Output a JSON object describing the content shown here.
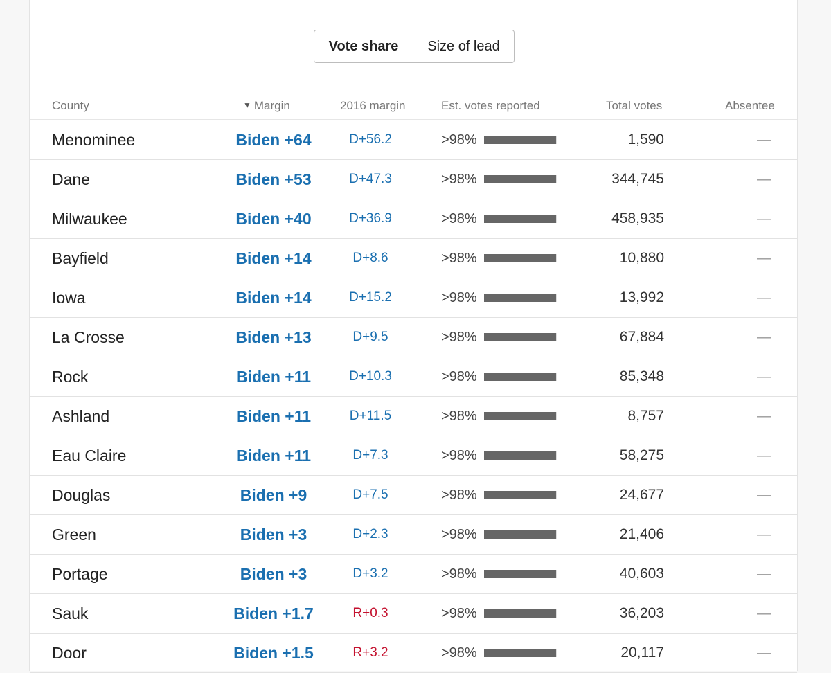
{
  "toggle": {
    "active": "Vote share",
    "inactive": "Size of lead"
  },
  "headers": {
    "county": "County",
    "sort_arrow": "▼",
    "margin": "Margin",
    "margin_2016": "2016 margin",
    "reported": "Est. votes reported",
    "total": "Total votes",
    "absentee": "Absentee"
  },
  "colors": {
    "dem": "#1a6fb0",
    "rep": "#c4122f",
    "bar": "#666666"
  },
  "rows": [
    {
      "county": "Menominee",
      "margin": "Biden +64",
      "margin_2016": "D+56.2",
      "party_2016": "D",
      "reported": ">98%",
      "reported_fraction": 0.98,
      "total": "1,590",
      "absentee": "—"
    },
    {
      "county": "Dane",
      "margin": "Biden +53",
      "margin_2016": "D+47.3",
      "party_2016": "D",
      "reported": ">98%",
      "reported_fraction": 0.98,
      "total": "344,745",
      "absentee": "—"
    },
    {
      "county": "Milwaukee",
      "margin": "Biden +40",
      "margin_2016": "D+36.9",
      "party_2016": "D",
      "reported": ">98%",
      "reported_fraction": 0.98,
      "total": "458,935",
      "absentee": "—"
    },
    {
      "county": "Bayfield",
      "margin": "Biden +14",
      "margin_2016": "D+8.6",
      "party_2016": "D",
      "reported": ">98%",
      "reported_fraction": 0.98,
      "total": "10,880",
      "absentee": "—"
    },
    {
      "county": "Iowa",
      "margin": "Biden +14",
      "margin_2016": "D+15.2",
      "party_2016": "D",
      "reported": ">98%",
      "reported_fraction": 0.98,
      "total": "13,992",
      "absentee": "—"
    },
    {
      "county": "La Crosse",
      "margin": "Biden +13",
      "margin_2016": "D+9.5",
      "party_2016": "D",
      "reported": ">98%",
      "reported_fraction": 0.98,
      "total": "67,884",
      "absentee": "—"
    },
    {
      "county": "Rock",
      "margin": "Biden +11",
      "margin_2016": "D+10.3",
      "party_2016": "D",
      "reported": ">98%",
      "reported_fraction": 0.98,
      "total": "85,348",
      "absentee": "—"
    },
    {
      "county": "Ashland",
      "margin": "Biden +11",
      "margin_2016": "D+11.5",
      "party_2016": "D",
      "reported": ">98%",
      "reported_fraction": 0.98,
      "total": "8,757",
      "absentee": "—"
    },
    {
      "county": "Eau Claire",
      "margin": "Biden +11",
      "margin_2016": "D+7.3",
      "party_2016": "D",
      "reported": ">98%",
      "reported_fraction": 0.98,
      "total": "58,275",
      "absentee": "—"
    },
    {
      "county": "Douglas",
      "margin": "Biden +9",
      "margin_2016": "D+7.5",
      "party_2016": "D",
      "reported": ">98%",
      "reported_fraction": 0.98,
      "total": "24,677",
      "absentee": "—"
    },
    {
      "county": "Green",
      "margin": "Biden +3",
      "margin_2016": "D+2.3",
      "party_2016": "D",
      "reported": ">98%",
      "reported_fraction": 0.98,
      "total": "21,406",
      "absentee": "—"
    },
    {
      "county": "Portage",
      "margin": "Biden +3",
      "margin_2016": "D+3.2",
      "party_2016": "D",
      "reported": ">98%",
      "reported_fraction": 0.98,
      "total": "40,603",
      "absentee": "—"
    },
    {
      "county": "Sauk",
      "margin": "Biden +1.7",
      "margin_2016": "R+0.3",
      "party_2016": "R",
      "reported": ">98%",
      "reported_fraction": 0.98,
      "total": "36,203",
      "absentee": "—"
    },
    {
      "county": "Door",
      "margin": "Biden +1.5",
      "margin_2016": "R+3.2",
      "party_2016": "R",
      "reported": ">98%",
      "reported_fraction": 0.98,
      "total": "20,117",
      "absentee": "—"
    }
  ]
}
